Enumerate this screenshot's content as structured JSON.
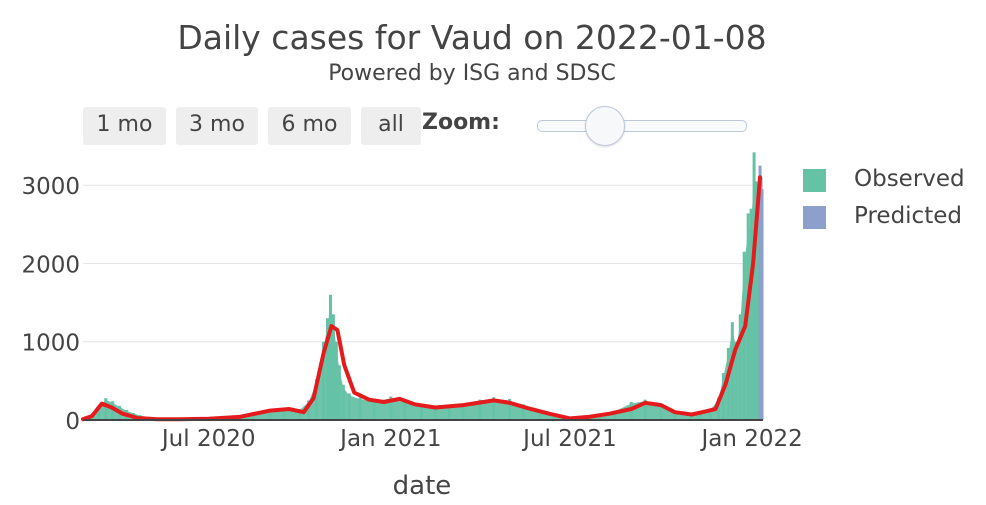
{
  "title": "Daily cases for Vaud on 2022-01-08",
  "subtitle": "Powered by ISG and SDSC",
  "range_buttons": [
    "1 mo",
    "3 mo",
    "6 mo",
    "all"
  ],
  "zoom_label": "Zoom:",
  "legend": [
    {
      "label": "Observed",
      "color": "#66c2a5"
    },
    {
      "label": "Predicted",
      "color": "#8da0cb"
    }
  ],
  "colors": {
    "observed": "#66c2a5",
    "predicted": "#8da0cb",
    "trend": "#e41a1c",
    "grid": "#e6e6e6"
  },
  "chart_data": {
    "type": "bar",
    "xlabel": "date",
    "ylabel": "",
    "x_range": [
      "2020-02-25",
      "2022-01-12"
    ],
    "ylim": [
      0,
      3450
    ],
    "y_ticks": [
      0,
      1000,
      2000,
      3000
    ],
    "x_ticks": [
      {
        "date": "2020-07-01",
        "label": "Jul 2020"
      },
      {
        "date": "2021-01-01",
        "label": "Jan 2021"
      },
      {
        "date": "2021-07-01",
        "label": "Jul 2021"
      },
      {
        "date": "2022-01-01",
        "label": "Jan 2022"
      }
    ],
    "grid": true,
    "legend_position": "top-right",
    "series": [
      {
        "name": "Observed",
        "kind": "bar",
        "dates": [
          "2020-02-25",
          "2020-03-05",
          "2020-03-12",
          "2020-03-19",
          "2020-03-26",
          "2020-04-02",
          "2020-04-09",
          "2020-04-16",
          "2020-04-23",
          "2020-05-01",
          "2020-05-15",
          "2020-06-01",
          "2020-06-15",
          "2020-07-01",
          "2020-07-15",
          "2020-08-01",
          "2020-08-15",
          "2020-09-01",
          "2020-09-15",
          "2020-10-01",
          "2020-10-10",
          "2020-10-18",
          "2020-10-25",
          "2020-10-29",
          "2020-11-01",
          "2020-11-04",
          "2020-11-07",
          "2020-11-10",
          "2020-11-14",
          "2020-11-20",
          "2020-12-01",
          "2020-12-15",
          "2021-01-01",
          "2021-01-15",
          "2021-02-01",
          "2021-02-15",
          "2021-03-01",
          "2021-03-15",
          "2021-04-01",
          "2021-04-15",
          "2021-05-01",
          "2021-05-15",
          "2021-06-01",
          "2021-06-15",
          "2021-07-01",
          "2021-07-15",
          "2021-08-01",
          "2021-08-15",
          "2021-09-01",
          "2021-09-15",
          "2021-10-01",
          "2021-10-15",
          "2021-11-01",
          "2021-11-10",
          "2021-11-20",
          "2021-11-28",
          "2021-12-03",
          "2021-12-08",
          "2021-12-12",
          "2021-12-16",
          "2021-12-20",
          "2021-12-24",
          "2021-12-28",
          "2021-12-31",
          "2022-01-03",
          "2022-01-05",
          "2022-01-07"
        ],
        "values": [
          10,
          60,
          180,
          280,
          240,
          180,
          130,
          90,
          60,
          40,
          25,
          20,
          20,
          30,
          40,
          60,
          70,
          110,
          150,
          140,
          250,
          520,
          1000,
          1300,
          1600,
          1350,
          1000,
          700,
          450,
          340,
          290,
          260,
          300,
          240,
          200,
          170,
          180,
          210,
          260,
          290,
          270,
          200,
          120,
          60,
          30,
          50,
          80,
          120,
          230,
          260,
          200,
          120,
          90,
          110,
          140,
          280,
          600,
          920,
          1250,
          1000,
          1350,
          2150,
          2640,
          2700,
          3420,
          3050,
          2800
        ]
      },
      {
        "name": "Predicted",
        "kind": "bar",
        "dates": [
          "2022-01-09",
          "2022-01-10",
          "2022-01-11"
        ],
        "values": [
          3250,
          3100,
          2950
        ]
      },
      {
        "name": "",
        "kind": "line",
        "dates": [
          "2020-02-25",
          "2020-03-05",
          "2020-03-15",
          "2020-03-25",
          "2020-04-05",
          "2020-04-20",
          "2020-05-10",
          "2020-06-01",
          "2020-07-01",
          "2020-08-01",
          "2020-09-01",
          "2020-09-20",
          "2020-10-05",
          "2020-10-15",
          "2020-10-25",
          "2020-11-02",
          "2020-11-08",
          "2020-11-15",
          "2020-11-25",
          "2020-12-10",
          "2020-12-25",
          "2021-01-10",
          "2021-01-25",
          "2021-02-15",
          "2021-03-15",
          "2021-04-15",
          "2021-05-01",
          "2021-05-20",
          "2021-06-10",
          "2021-07-01",
          "2021-07-20",
          "2021-08-10",
          "2021-09-01",
          "2021-09-15",
          "2021-10-01",
          "2021-10-15",
          "2021-11-01",
          "2021-11-15",
          "2021-11-25",
          "2021-12-05",
          "2021-12-15",
          "2021-12-25",
          "2022-01-02",
          "2022-01-09"
        ],
        "values": [
          10,
          50,
          210,
          160,
          80,
          25,
          10,
          10,
          15,
          40,
          120,
          140,
          100,
          280,
          850,
          1200,
          1150,
          700,
          350,
          260,
          230,
          270,
          200,
          160,
          190,
          250,
          220,
          150,
          80,
          20,
          40,
          80,
          140,
          220,
          190,
          100,
          70,
          110,
          140,
          450,
          900,
          1200,
          2000,
          3100
        ]
      }
    ]
  }
}
